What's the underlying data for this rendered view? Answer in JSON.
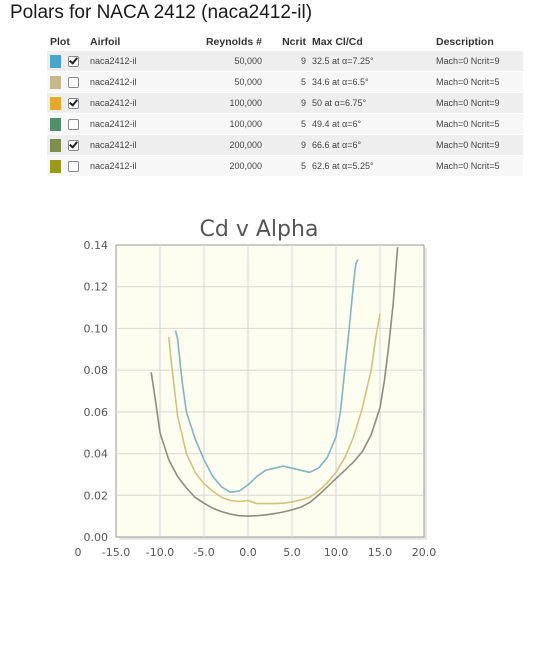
{
  "page": {
    "title": "Polars for NACA 2412 (naca2412-il)"
  },
  "table": {
    "headers": {
      "plot": "Plot",
      "airfoil": "Airfoil",
      "reynolds": "Reynolds #",
      "ncrit": "Ncrit",
      "maxclcd": "Max Cl/Cd",
      "description": "Description"
    },
    "rows": [
      {
        "color": "#4aa6c8",
        "checked": true,
        "airfoil": "naca2412-il",
        "reynolds": "50,000",
        "ncrit": "9",
        "maxclcd": "32.5 at α=7.25°",
        "description": "Mach=0 Ncrit=9"
      },
      {
        "color": "#c7b98a",
        "checked": false,
        "airfoil": "naca2412-il",
        "reynolds": "50,000",
        "ncrit": "5",
        "maxclcd": "34.6 at α=6.5°",
        "description": "Mach=0 Ncrit=5"
      },
      {
        "color": "#e6a92b",
        "checked": true,
        "airfoil": "naca2412-il",
        "reynolds": "100,000",
        "ncrit": "9",
        "maxclcd": "50 at α=6.75°",
        "description": "Mach=0 Ncrit=9"
      },
      {
        "color": "#4f8f6b",
        "checked": false,
        "airfoil": "naca2412-il",
        "reynolds": "100,000",
        "ncrit": "5",
        "maxclcd": "49.4 at α=6°",
        "description": "Mach=0 Ncrit=5"
      },
      {
        "color": "#7f8f4a",
        "checked": true,
        "airfoil": "naca2412-il",
        "reynolds": "200,000",
        "ncrit": "9",
        "maxclcd": "66.6 at α=6°",
        "description": "Mach=0 Ncrit=9"
      },
      {
        "color": "#9a9a1a",
        "checked": false,
        "airfoil": "naca2412-il",
        "reynolds": "200,000",
        "ncrit": "5",
        "maxclcd": "62.6 at α=5.25°",
        "description": "Mach=0 Ncrit=5"
      }
    ]
  },
  "chart_data": {
    "type": "line",
    "title": "Cd v Alpha",
    "xlabel": "",
    "ylabel": "",
    "xlim": [
      -15,
      20
    ],
    "ylim": [
      0,
      0.14
    ],
    "x_ticks": [
      "-15.0",
      "-10.0",
      "-5.0",
      "0.0",
      "5.0",
      "10.0",
      "15.0",
      "20.0"
    ],
    "y_ticks": [
      "0.00",
      "0.02",
      "0.04",
      "0.06",
      "0.08",
      "0.10",
      "0.12",
      "0.14"
    ],
    "x_origin_label": "0",
    "grid": true,
    "plot_background": "#fdfdf0",
    "series": [
      {
        "color": "#7fb5c5",
        "points": [
          [
            -8.25,
            0.099
          ],
          [
            -8,
            0.095
          ],
          [
            -7.5,
            0.075
          ],
          [
            -7,
            0.06
          ],
          [
            -6,
            0.047
          ],
          [
            -5,
            0.037
          ],
          [
            -4,
            0.029
          ],
          [
            -3,
            0.024
          ],
          [
            -2,
            0.0215
          ],
          [
            -1,
            0.022
          ],
          [
            0,
            0.025
          ],
          [
            1,
            0.029
          ],
          [
            2,
            0.032
          ],
          [
            3,
            0.033
          ],
          [
            4,
            0.034
          ],
          [
            5,
            0.033
          ],
          [
            6,
            0.032
          ],
          [
            7,
            0.031
          ],
          [
            8,
            0.033
          ],
          [
            9,
            0.038
          ],
          [
            10,
            0.048
          ],
          [
            10.5,
            0.06
          ],
          [
            11,
            0.08
          ],
          [
            11.5,
            0.1
          ],
          [
            12,
            0.122
          ],
          [
            12.25,
            0.131
          ],
          [
            12.5,
            0.133
          ]
        ]
      },
      {
        "color": "#d4c27a",
        "points": [
          [
            -9,
            0.096
          ],
          [
            -8.75,
            0.085
          ],
          [
            -8,
            0.058
          ],
          [
            -7,
            0.04
          ],
          [
            -6,
            0.031
          ],
          [
            -5,
            0.0255
          ],
          [
            -4,
            0.022
          ],
          [
            -3,
            0.019
          ],
          [
            -2,
            0.0175
          ],
          [
            -1,
            0.017
          ],
          [
            0,
            0.0175
          ],
          [
            1,
            0.016
          ],
          [
            2,
            0.016
          ],
          [
            3,
            0.016
          ],
          [
            4,
            0.0162
          ],
          [
            5,
            0.0168
          ],
          [
            6,
            0.0178
          ],
          [
            7,
            0.019
          ],
          [
            8,
            0.022
          ],
          [
            9,
            0.026
          ],
          [
            10,
            0.031
          ],
          [
            11,
            0.038
          ],
          [
            12,
            0.048
          ],
          [
            13,
            0.062
          ],
          [
            14,
            0.08
          ],
          [
            14.5,
            0.095
          ],
          [
            15,
            0.107
          ]
        ]
      },
      {
        "color": "#8d8e7e",
        "points": [
          [
            -11,
            0.079
          ],
          [
            -10.5,
            0.065
          ],
          [
            -10,
            0.05
          ],
          [
            -9,
            0.037
          ],
          [
            -8,
            0.029
          ],
          [
            -7,
            0.0235
          ],
          [
            -6,
            0.019
          ],
          [
            -5,
            0.0162
          ],
          [
            -4,
            0.0138
          ],
          [
            -3,
            0.0122
          ],
          [
            -2,
            0.011
          ],
          [
            -1,
            0.0102
          ],
          [
            0,
            0.01
          ],
          [
            1,
            0.0102
          ],
          [
            2,
            0.0106
          ],
          [
            3,
            0.0112
          ],
          [
            4,
            0.012
          ],
          [
            5,
            0.013
          ],
          [
            6,
            0.0143
          ],
          [
            7,
            0.0165
          ],
          [
            8,
            0.02
          ],
          [
            9,
            0.024
          ],
          [
            10,
            0.028
          ],
          [
            11,
            0.032
          ],
          [
            12,
            0.036
          ],
          [
            13,
            0.041
          ],
          [
            14,
            0.049
          ],
          [
            15,
            0.062
          ],
          [
            15.5,
            0.075
          ],
          [
            16,
            0.092
          ],
          [
            16.5,
            0.112
          ],
          [
            17,
            0.139
          ]
        ]
      }
    ]
  }
}
